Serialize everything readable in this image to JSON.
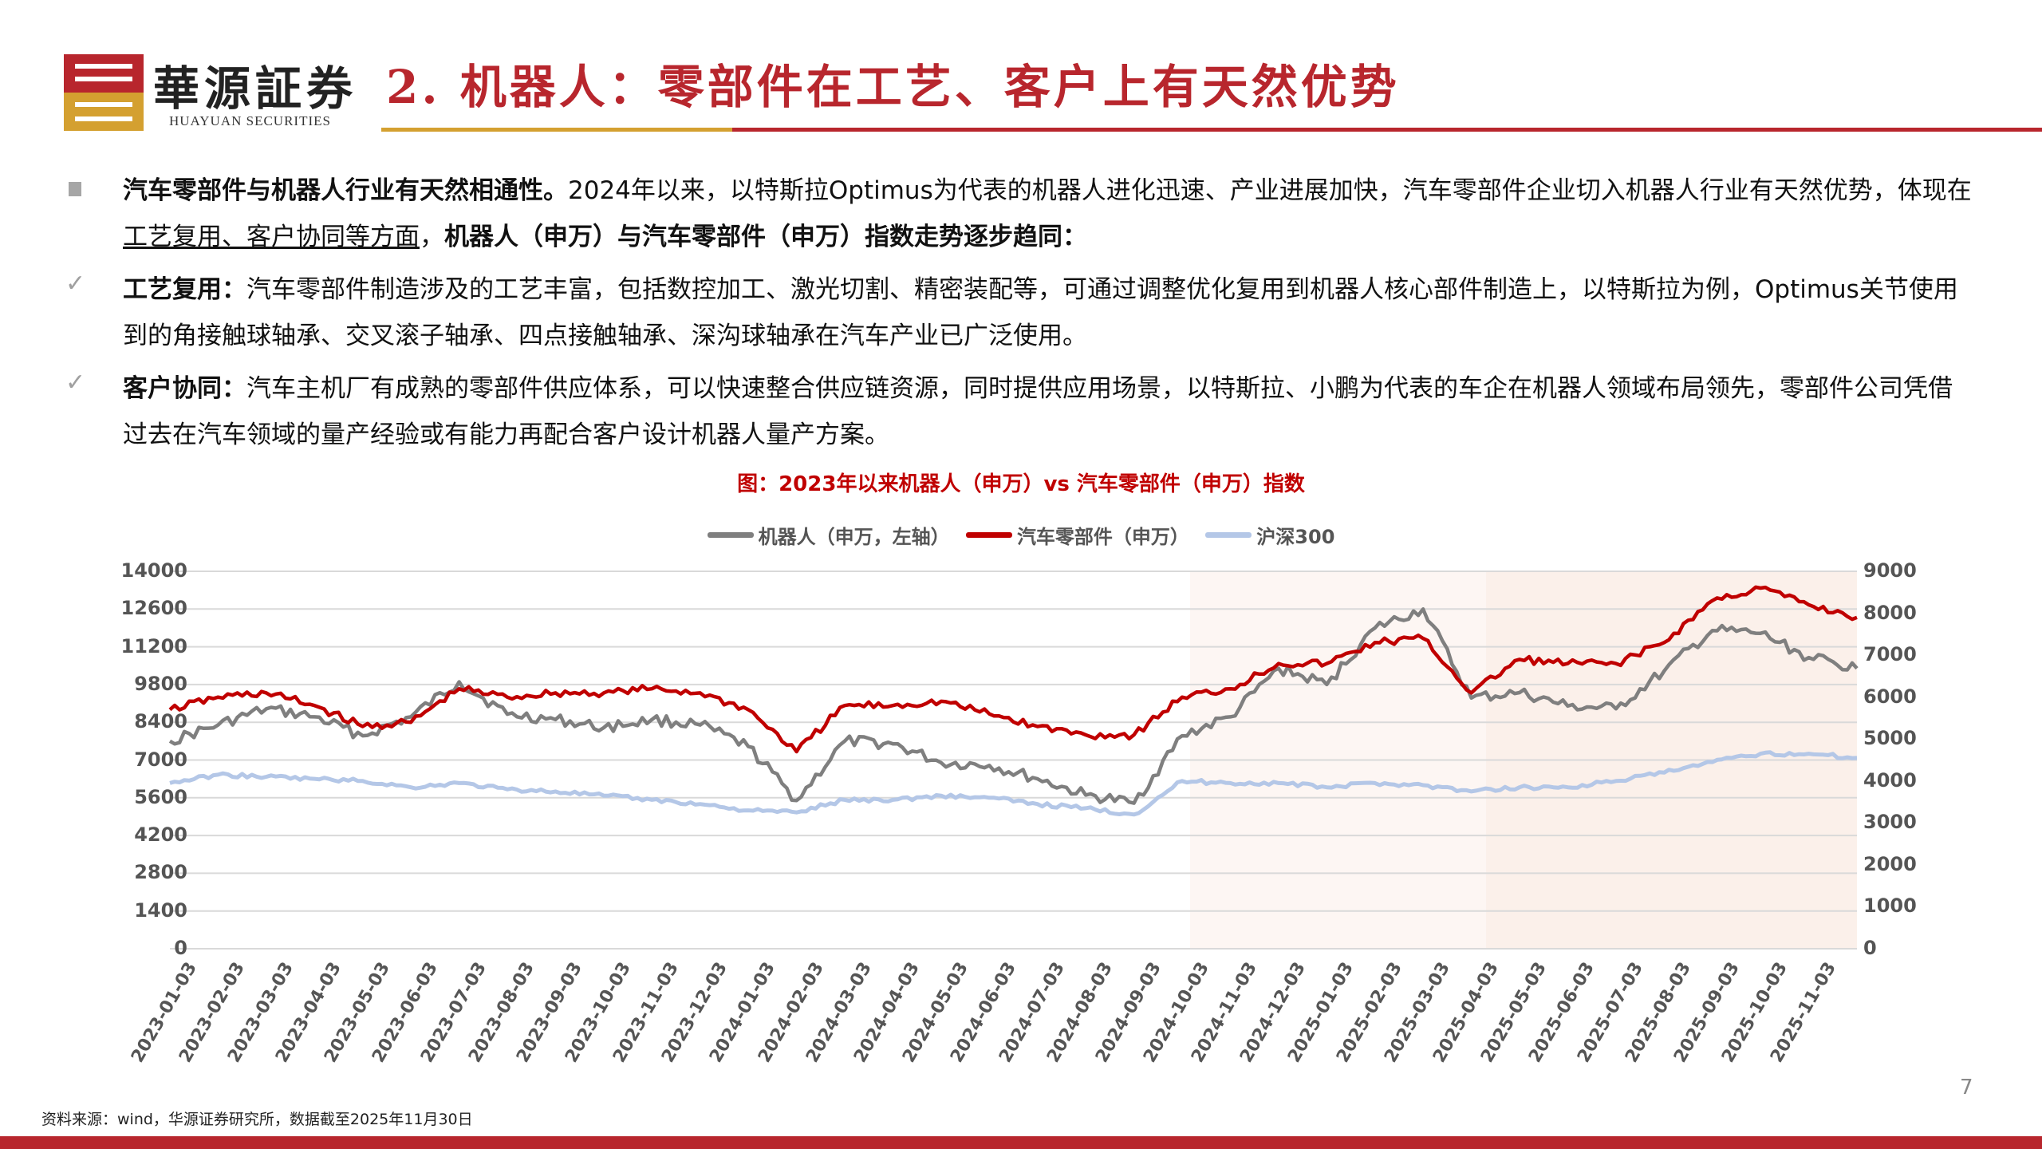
{
  "header": {
    "brand_cn": "華源証券",
    "brand_en": "HUAYUAN SECURITIES",
    "title": "2. 机器人：零部件在工艺、客户上有天然优势"
  },
  "body": {
    "p1_bold": "汽车零部件与机器人行业有天然相通性。",
    "p1_text_a": "2024年以来，以特斯拉Optimus为代表的机器人进化迅速、产业进展加快，汽车零部件企业切入机器人行业有天然优势，体现在",
    "p1_underline": "工艺复用、客户协同等方面",
    "p1_text_b": "，",
    "p1_bold_end": "机器人（申万）与汽车零部件（申万）指数走势逐步趋同：",
    "p2_bold": "工艺复用：",
    "p2_text": "汽车零部件制造涉及的工艺丰富，包括数控加工、激光切割、精密装配等，可通过调整优化复用到机器人核心部件制造上，以特斯拉为例，Optimus关节使用到的角接触球轴承、交叉滚子轴承、四点接触轴承、深沟球轴承在汽车产业已广泛使用。",
    "p3_bold": "客户协同：",
    "p3_text": "汽车主机厂有成熟的零部件供应体系，可以快速整合供应链资源，同时提供应用场景，以特斯拉、小鹏为代表的车企在机器人领域布局领先，零部件公司凭借过去在汽车领域的量产经验或有能力再配合客户设计机器人量产方案。",
    "bullet_square": "■",
    "bullet_check": "✓"
  },
  "chart_data": {
    "type": "line",
    "title": "图：2023年以来机器人（申万）vs 汽车零部件（申万）指数",
    "xlabel": "",
    "ylabel_left": "",
    "ylabel_right": "",
    "ylim_left": [
      0,
      14000
    ],
    "ylim_right": [
      0,
      9000
    ],
    "yticks_left": [
      "14000",
      "12600",
      "11200",
      "9800",
      "8400",
      "7000",
      "5600",
      "4200",
      "2800",
      "1400",
      "0"
    ],
    "yticks_right": [
      "9000",
      "8000",
      "7000",
      "6000",
      "5000",
      "4000",
      "3000",
      "2000",
      "1000",
      "0"
    ],
    "grid": true,
    "legend_position": "top",
    "shaded_regions": [
      [
        "2024-10-03",
        "2025-04-03"
      ],
      [
        "2025-04-03",
        "2025-11-30"
      ]
    ],
    "x": [
      "2023-01-03",
      "2023-02-03",
      "2023-03-03",
      "2023-04-03",
      "2023-05-03",
      "2023-06-03",
      "2023-07-03",
      "2023-08-03",
      "2023-09-03",
      "2023-10-03",
      "2023-11-03",
      "2023-12-03",
      "2024-01-03",
      "2024-02-03",
      "2024-03-03",
      "2024-04-03",
      "2024-05-03",
      "2024-06-03",
      "2024-07-03",
      "2024-08-03",
      "2024-09-03",
      "2024-10-03",
      "2024-11-03",
      "2024-12-03",
      "2025-01-03",
      "2025-02-03",
      "2025-03-03",
      "2025-04-03",
      "2025-05-03",
      "2025-06-03",
      "2025-07-03",
      "2025-08-03",
      "2025-09-03",
      "2025-10-03",
      "2025-11-03",
      "2025-11-30"
    ],
    "series": [
      {
        "name": "机器人（申万，左轴）",
        "axis": "left",
        "color": "#7f7f7f",
        "values": [
          7700,
          8300,
          8900,
          8600,
          7900,
          8600,
          9900,
          8700,
          8500,
          8200,
          8500,
          8300,
          7500,
          5500,
          7700,
          7600,
          6900,
          6800,
          6300,
          5700,
          5400,
          7900,
          8600,
          10400,
          9800,
          11900,
          12600,
          9300,
          9500,
          9000,
          8900,
          10300,
          11800,
          11700,
          10800,
          10400
        ]
      },
      {
        "name": "汽车零部件（申万）",
        "axis": "right",
        "color": "#c00000",
        "values": [
          5700,
          6000,
          6100,
          5800,
          5300,
          5400,
          6200,
          6000,
          6100,
          6100,
          6200,
          6100,
          5700,
          4700,
          5800,
          5800,
          5900,
          5600,
          5300,
          5100,
          5100,
          6000,
          6200,
          6800,
          6800,
          7300,
          7400,
          6100,
          6900,
          6800,
          6800,
          7300,
          8300,
          8600,
          8200,
          7900
        ]
      },
      {
        "name": "沪深300",
        "axis": "right",
        "color": "#b4c7e7",
        "values": [
          3950,
          4150,
          4100,
          4050,
          4000,
          3850,
          3950,
          3800,
          3750,
          3650,
          3550,
          3450,
          3300,
          3250,
          3550,
          3550,
          3650,
          3600,
          3450,
          3350,
          3200,
          4000,
          3950,
          3950,
          3850,
          3950,
          3900,
          3750,
          3850,
          3850,
          4000,
          4200,
          4450,
          4650,
          4650,
          4550
        ]
      }
    ]
  },
  "legend": [
    {
      "label": "机器人（申万，左轴）",
      "color": "#7f7f7f"
    },
    {
      "label": "汽车零部件（申万）",
      "color": "#c00000"
    },
    {
      "label": "沪深300",
      "color": "#b4c7e7"
    }
  ],
  "footer": {
    "source": "资料来源：wind，华源证券研究所，数据截至2025年11月30日",
    "page_number": "7"
  },
  "colors": {
    "brand_red": "#b8262d",
    "brand_gold": "#d4a030",
    "shade": "#fbf1ec"
  }
}
